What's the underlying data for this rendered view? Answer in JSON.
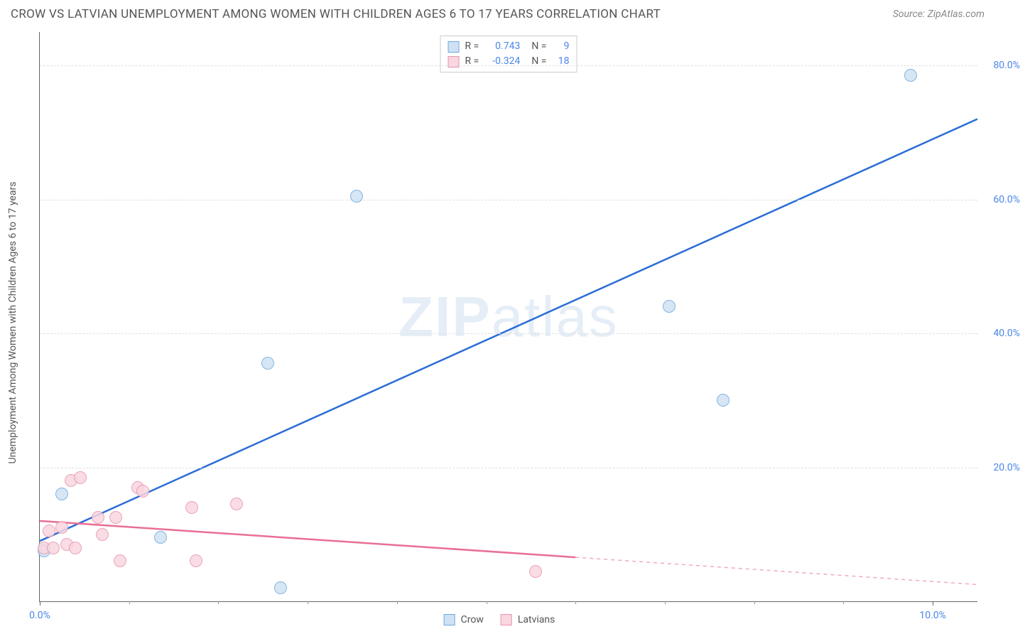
{
  "header": {
    "title": "CROW VS LATVIAN UNEMPLOYMENT AMONG WOMEN WITH CHILDREN AGES 6 TO 17 YEARS CORRELATION CHART",
    "source": "Source: ZipAtlas.com"
  },
  "chart": {
    "type": "scatter",
    "ylabel": "Unemployment Among Women with Children Ages 6 to 17 years",
    "watermark": "ZIPatlas",
    "background_color": "#ffffff",
    "grid_color": "#e0e0e0",
    "axis_color": "#666666",
    "x": {
      "min": 0.0,
      "max": 10.5,
      "ticks": [
        0.0,
        10.0
      ],
      "tick_labels": [
        "0.0%",
        "10.0%"
      ],
      "label_color_left": "#4a86e8",
      "label_color_right": "#4a86e8",
      "minor_step": 1.0
    },
    "y": {
      "min": 0.0,
      "max": 85.0,
      "ticks": [
        20.0,
        40.0,
        60.0,
        80.0
      ],
      "tick_labels": [
        "20.0%",
        "40.0%",
        "60.0%",
        "80.0%"
      ],
      "label_color": "#4a86e8"
    },
    "series": [
      {
        "name": "Crow",
        "color_fill": "#cfe2f3",
        "color_stroke": "#6fa8dc",
        "marker_r": 9,
        "points": [
          {
            "x": 0.05,
            "y": 7.5
          },
          {
            "x": 0.25,
            "y": 16.0
          },
          {
            "x": 1.35,
            "y": 9.5
          },
          {
            "x": 2.55,
            "y": 35.5
          },
          {
            "x": 2.7,
            "y": 2.0
          },
          {
            "x": 3.55,
            "y": 60.5
          },
          {
            "x": 7.05,
            "y": 44.0
          },
          {
            "x": 7.65,
            "y": 30.0
          },
          {
            "x": 9.75,
            "y": 78.5
          }
        ],
        "trend": {
          "color": "#2a6dd6",
          "width": 2.5,
          "x1": 0.0,
          "y1": 9.0,
          "x2": 10.5,
          "y2": 72.0,
          "dashed_from_x": 10.5
        },
        "R": "0.743",
        "N": "9"
      },
      {
        "name": "Latvians",
        "color_fill": "#f8d7e0",
        "color_stroke": "#e893ad",
        "marker_r": 9,
        "points": [
          {
            "x": 0.05,
            "y": 8.0
          },
          {
            "x": 0.1,
            "y": 10.5
          },
          {
            "x": 0.15,
            "y": 8.0
          },
          {
            "x": 0.25,
            "y": 11.0
          },
          {
            "x": 0.3,
            "y": 8.5
          },
          {
            "x": 0.35,
            "y": 18.0
          },
          {
            "x": 0.4,
            "y": 8.0
          },
          {
            "x": 0.45,
            "y": 18.5
          },
          {
            "x": 0.65,
            "y": 12.5
          },
          {
            "x": 0.7,
            "y": 10.0
          },
          {
            "x": 0.85,
            "y": 12.5
          },
          {
            "x": 0.9,
            "y": 6.0
          },
          {
            "x": 1.1,
            "y": 17.0
          },
          {
            "x": 1.15,
            "y": 16.5
          },
          {
            "x": 1.7,
            "y": 14.0
          },
          {
            "x": 1.75,
            "y": 6.0
          },
          {
            "x": 2.2,
            "y": 14.5
          },
          {
            "x": 5.55,
            "y": 4.5
          }
        ],
        "trend": {
          "color": "#e96f94",
          "width": 2.5,
          "x1": 0.0,
          "y1": 12.0,
          "x2": 10.5,
          "y2": 2.5,
          "dashed_from_x": 6.0
        },
        "R": "-0.324",
        "N": "18"
      }
    ],
    "stats_legend": {
      "value_color": "#4a86e8"
    },
    "bottom_legend": {
      "items": [
        "Crow",
        "Latvians"
      ]
    }
  }
}
